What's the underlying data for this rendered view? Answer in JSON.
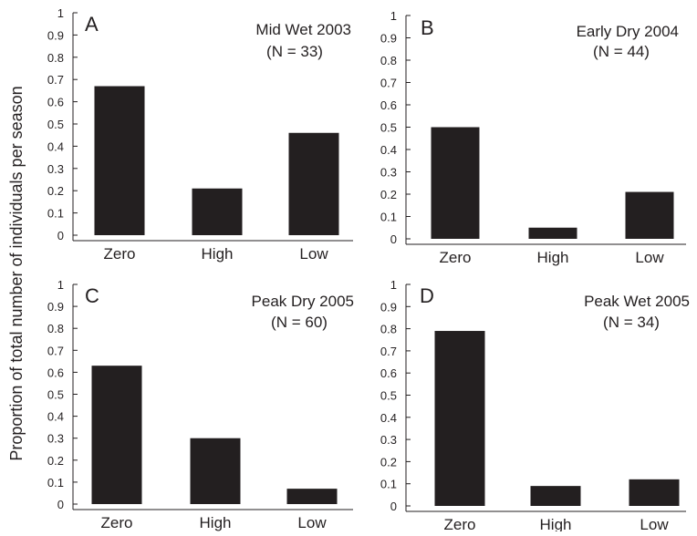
{
  "figure": {
    "ylabel": "Proportion of total number of individuals per season"
  },
  "chart_data": [
    {
      "type": "bar",
      "panel": "A",
      "title": "Mid Wet 2003",
      "n_label": "(N = 33)",
      "categories": [
        "Zero",
        "High",
        "Low"
      ],
      "values": [
        0.67,
        0.21,
        0.46
      ],
      "ylim": [
        0,
        1
      ],
      "yticks": [
        "0",
        "0.1",
        "0.2",
        "0.3",
        "0.4",
        "0.5",
        "0.6",
        "0.7",
        "0.8",
        "0.9",
        "1"
      ],
      "bar_color": "#231f20",
      "grid": false
    },
    {
      "type": "bar",
      "panel": "B",
      "title": "Early Dry 2004",
      "n_label": "(N = 44)",
      "categories": [
        "Zero",
        "High",
        "Low"
      ],
      "values": [
        0.5,
        0.05,
        0.21
      ],
      "ylim": [
        0,
        1
      ],
      "yticks": [
        "0",
        "0.1",
        "0.2",
        "0.3",
        "0.4",
        "0.5",
        "0.6",
        "0.7",
        "0.8",
        "0.9",
        "1"
      ],
      "bar_color": "#231f20",
      "grid": false
    },
    {
      "type": "bar",
      "panel": "C",
      "title": "Peak Dry 2005",
      "n_label": "(N = 60)",
      "categories": [
        "Zero",
        "High",
        "Low"
      ],
      "values": [
        0.63,
        0.3,
        0.07
      ],
      "ylim": [
        0,
        1
      ],
      "yticks": [
        "0",
        "0.1",
        "0.2",
        "0.3",
        "0.4",
        "0.5",
        "0.6",
        "0.7",
        "0.8",
        "0.9",
        "1"
      ],
      "bar_color": "#231f20",
      "grid": false
    },
    {
      "type": "bar",
      "panel": "D",
      "title": "Peak Wet 2005",
      "n_label": "(N = 34)",
      "categories": [
        "Zero",
        "High",
        "Low"
      ],
      "values": [
        0.79,
        0.09,
        0.12
      ],
      "ylim": [
        0,
        1
      ],
      "yticks": [
        "0",
        "0.1",
        "0.2",
        "0.3",
        "0.4",
        "0.5",
        "0.6",
        "0.7",
        "0.8",
        "0.9",
        "1"
      ],
      "bar_color": "#231f20",
      "grid": false
    }
  ]
}
